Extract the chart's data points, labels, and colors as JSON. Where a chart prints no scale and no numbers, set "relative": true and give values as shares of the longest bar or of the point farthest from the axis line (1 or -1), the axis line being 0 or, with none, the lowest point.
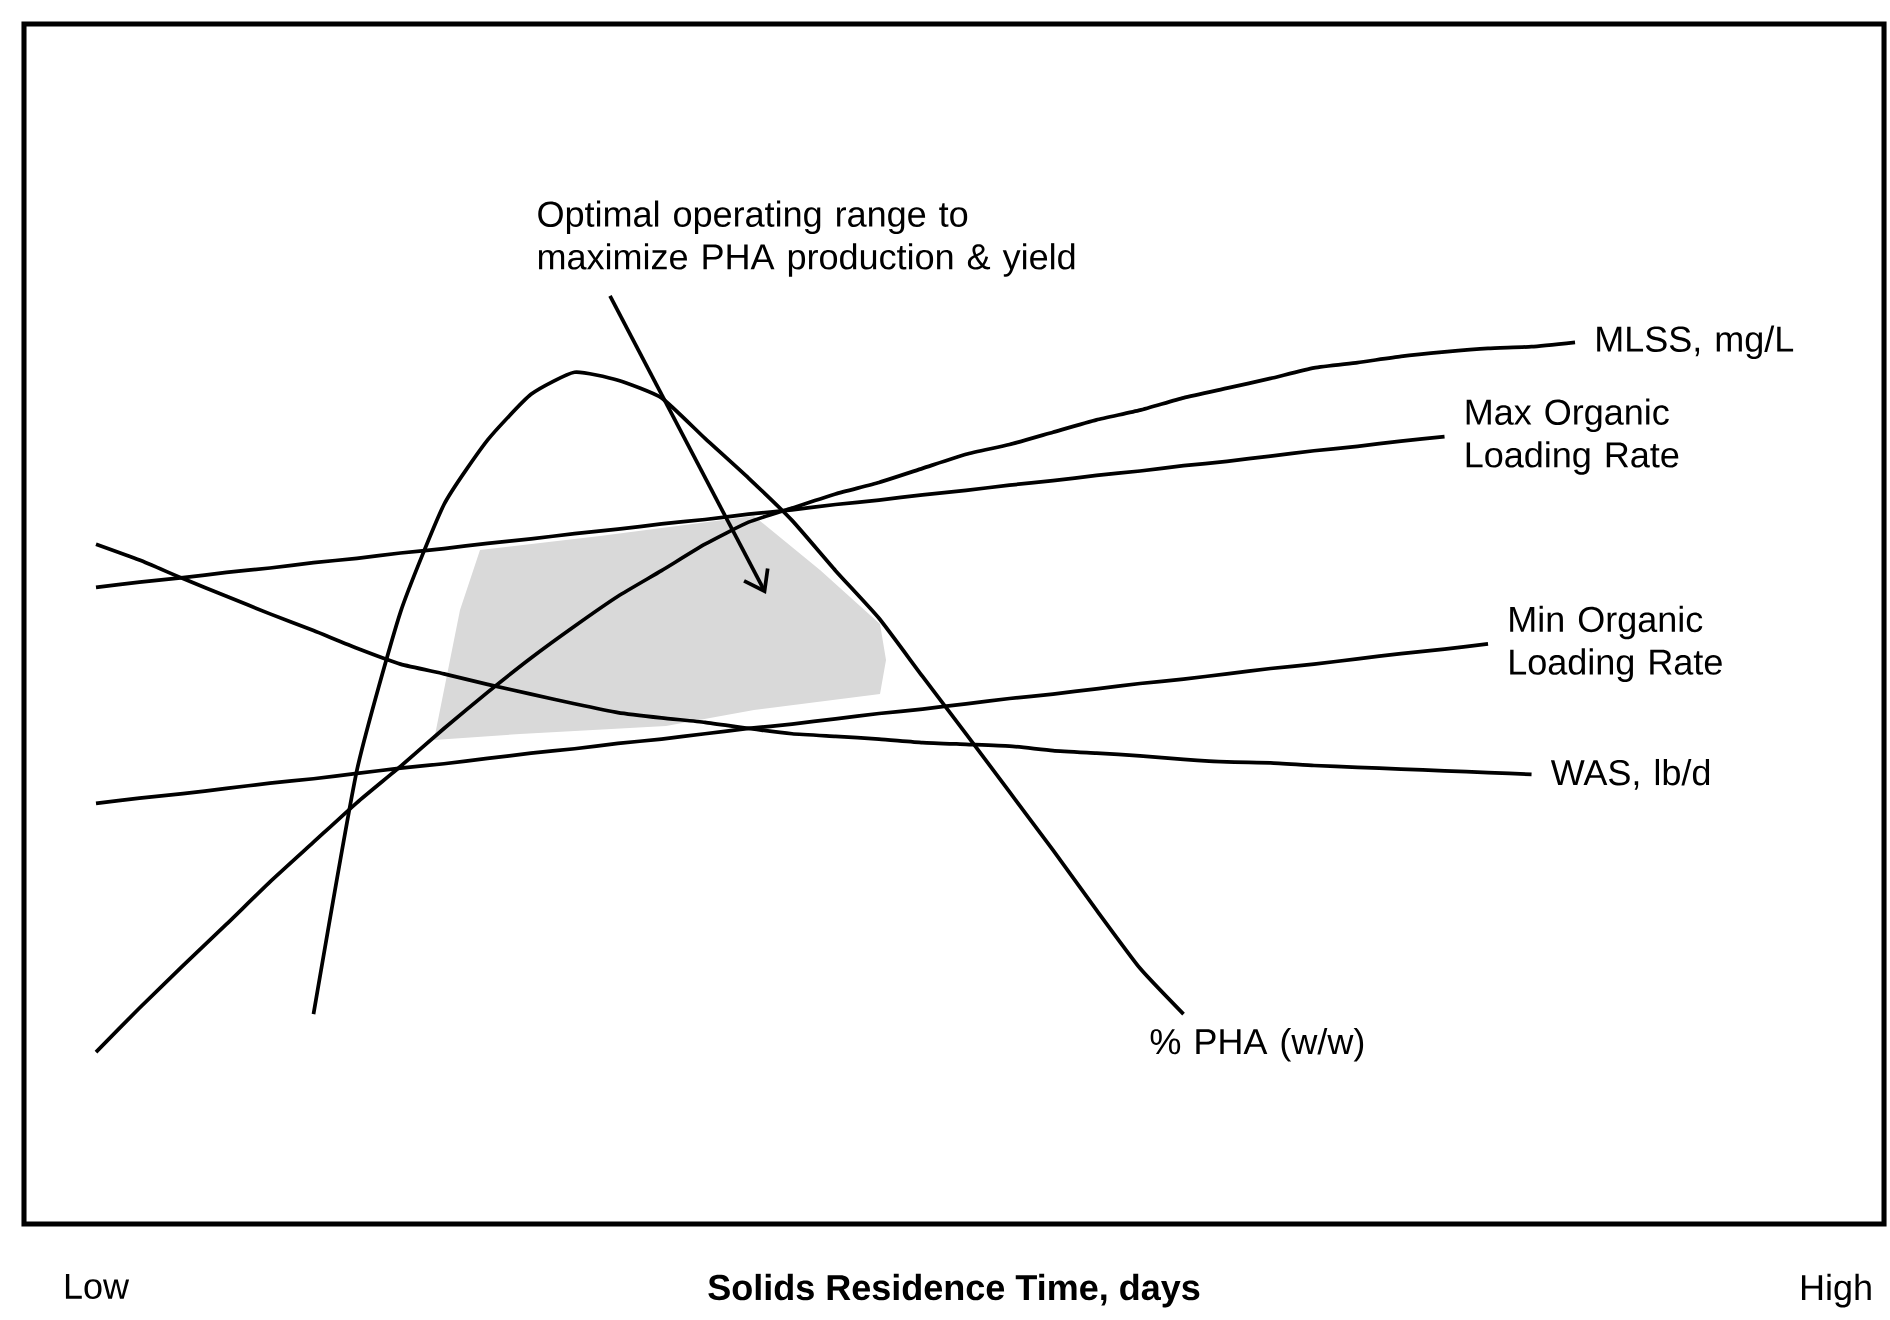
{
  "chart_data": {
    "type": "line",
    "relative": true,
    "xlabel": "Solids Residence Time, days",
    "categories": [
      "Low",
      null,
      null,
      null,
      null,
      null,
      null,
      null,
      null,
      null,
      null,
      null,
      null,
      null,
      null,
      null,
      null,
      null,
      null,
      null,
      null,
      null,
      null,
      null,
      null,
      null,
      null,
      null,
      null,
      null,
      null,
      null,
      null,
      null,
      null,
      null,
      null,
      null,
      null,
      null,
      "High"
    ],
    "annotations": [
      "Optimal operating range to maximize PHA production & yield"
    ],
    "series": [
      {
        "name": "MLSS, mg/L",
        "color": "#000000",
        "values": [
          0.195,
          0.245,
          0.293,
          0.34,
          0.388,
          0.433,
          0.478,
          0.519,
          0.562,
          0.603,
          0.642,
          0.678,
          0.712,
          0.741,
          0.771,
          0.796,
          0.812,
          0.828,
          0.841,
          0.857,
          0.873,
          0.884,
          0.898,
          0.912,
          0.923,
          0.937,
          0.948,
          0.959,
          0.971,
          0.977,
          0.984,
          0.989,
          0.993,
          0.995,
          1.0,
          null,
          null,
          null,
          null,
          null,
          null
        ]
      },
      {
        "name": "Max Organic Loading Rate",
        "color": "#000000",
        "values": [
          0.722,
          0.728,
          0.733,
          0.739,
          0.744,
          0.75,
          0.755,
          0.761,
          0.766,
          0.772,
          0.777,
          0.783,
          0.788,
          0.794,
          0.799,
          0.805,
          0.81,
          0.816,
          0.821,
          0.827,
          0.832,
          0.838,
          0.843,
          0.849,
          0.854,
          0.86,
          0.865,
          0.871,
          0.877,
          0.882,
          0.888,
          0.893,
          null,
          null,
          null,
          null,
          null,
          null,
          null,
          null,
          null
        ]
      },
      {
        "name": "Min Organic Loading Rate",
        "color": "#000000",
        "values": [
          0.477,
          0.483,
          0.488,
          0.494,
          0.5,
          0.505,
          0.511,
          0.517,
          0.522,
          0.528,
          0.534,
          0.539,
          0.545,
          0.55,
          0.556,
          0.562,
          0.567,
          0.573,
          0.579,
          0.584,
          0.59,
          0.596,
          0.601,
          0.607,
          0.613,
          0.618,
          0.624,
          0.63,
          0.635,
          0.641,
          0.647,
          0.652,
          0.658,
          null,
          null,
          null,
          null,
          null,
          null,
          null,
          null
        ]
      },
      {
        "name": "WAS, lb/d",
        "color": "#000000",
        "values": [
          0.771,
          0.753,
          0.732,
          0.712,
          0.692,
          0.673,
          0.653,
          0.635,
          0.624,
          0.612,
          0.601,
          0.59,
          0.58,
          0.574,
          0.569,
          0.562,
          0.556,
          0.553,
          0.55,
          0.546,
          0.544,
          0.542,
          0.537,
          0.534,
          0.531,
          0.527,
          0.524,
          0.523,
          0.52,
          0.518,
          0.516,
          0.514,
          0.512,
          0.51,
          null,
          null,
          null,
          null,
          null,
          null,
          null
        ]
      },
      {
        "name": "% PHA (w/w)",
        "color": "#000000",
        "values": [
          null,
          null,
          null,
          null,
          null,
          0.238,
          0.515,
          0.694,
          0.816,
          0.889,
          0.941,
          0.966,
          0.957,
          0.937,
          0.891,
          0.846,
          0.798,
          0.741,
          0.687,
          0.621,
          0.556,
          0.49,
          0.424,
          0.356,
          0.29,
          0.238,
          null,
          null,
          null,
          null,
          null,
          null,
          null,
          null,
          null,
          null,
          null,
          null,
          null,
          null,
          null
        ]
      }
    ]
  }
}
